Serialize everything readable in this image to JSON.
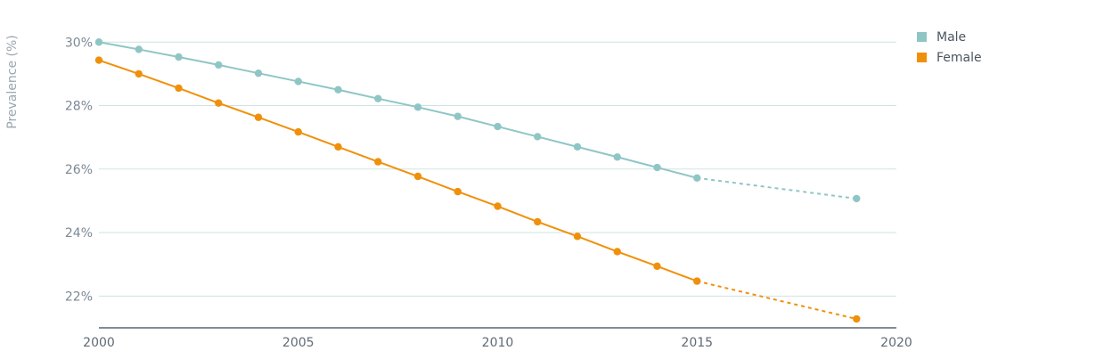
{
  "chart_data": {
    "type": "line",
    "ylabel": "Prevalence (%)",
    "xlabel": "",
    "xlim": [
      2000,
      2020
    ],
    "ylim": [
      21.0,
      30.4
    ],
    "x_ticks": [
      2000,
      2005,
      2010,
      2015,
      2020
    ],
    "y_ticks": [
      22,
      24,
      26,
      28,
      30
    ],
    "y_tick_labels": [
      "22%",
      "24%",
      "26%",
      "28%",
      "30%"
    ],
    "grid": "horizontal",
    "legend_position": "top-right",
    "series": [
      {
        "name": "Male",
        "color": "#8fc6c5",
        "x": [
          2000,
          2001,
          2002,
          2003,
          2004,
          2005,
          2006,
          2007,
          2008,
          2009,
          2010,
          2011,
          2012,
          2013,
          2014,
          2015
        ],
        "values": [
          30.0,
          29.77,
          29.53,
          29.28,
          29.02,
          28.76,
          28.5,
          28.22,
          27.95,
          27.66,
          27.34,
          27.02,
          26.7,
          26.38,
          26.05,
          25.72
        ],
        "projection_x": [
          2015,
          2019
        ],
        "projection_values": [
          25.72,
          25.07
        ]
      },
      {
        "name": "Female",
        "color": "#f0900a",
        "x": [
          2000,
          2001,
          2002,
          2003,
          2004,
          2005,
          2006,
          2007,
          2008,
          2009,
          2010,
          2011,
          2012,
          2013,
          2014,
          2015
        ],
        "values": [
          29.43,
          29.0,
          28.55,
          28.08,
          27.63,
          27.17,
          26.7,
          26.23,
          25.77,
          25.29,
          24.83,
          24.34,
          23.88,
          23.4,
          22.94,
          22.47
        ],
        "projection_x": [
          2015,
          2019
        ],
        "projection_values": [
          22.47,
          21.28
        ]
      }
    ]
  }
}
